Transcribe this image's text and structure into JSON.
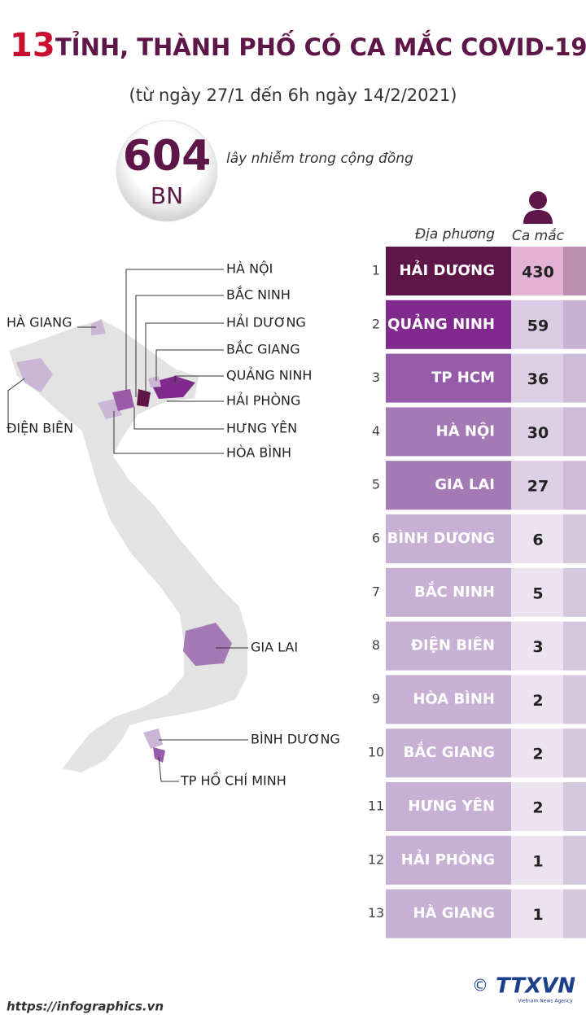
{
  "header": {
    "title_number": "13",
    "title_text": "TỈNH, THÀNH PHỐ CÓ CA MẮC COVID-19",
    "subtitle": "(từ ngày 27/1 đến 6h ngày 14/2/2021)"
  },
  "summary": {
    "number": "604",
    "unit": "BN",
    "caption": "lây nhiễm trong cộng đồng"
  },
  "table": {
    "headers": [
      "Địa phương",
      "Ca mắc"
    ],
    "rows": [
      [
        "1",
        "HẢI DƯƠNG",
        "430"
      ],
      [
        "2",
        "QUẢNG NINH",
        "59"
      ],
      [
        "3",
        "TP HCM",
        "36"
      ],
      [
        "4",
        "HÀ NỘI",
        "30"
      ],
      [
        "5",
        "GIA LAI",
        "27"
      ],
      [
        "6",
        "BÌNH DƯƠNG",
        "6"
      ],
      [
        "7",
        "BẮC NINH",
        "5"
      ],
      [
        "8",
        "ĐIỆN BIÊN",
        "3"
      ],
      [
        "9",
        "HÒA BÌNH",
        "2"
      ],
      [
        "10",
        "BẮC GIANG",
        "2"
      ],
      [
        "11",
        "HƯNG YÊN",
        "2"
      ],
      [
        "12",
        "HẢI PHÒNG",
        "1"
      ],
      [
        "13",
        "HÀ GIANG",
        "1"
      ]
    ]
  },
  "map": {
    "labels": [
      "HÀ NỘI",
      "BẮC NINH",
      "HẢI DƯƠNG",
      "BẮC GIANG",
      "QUẢNG NINH",
      "HẢI PHÒNG",
      "HƯNG YÊN",
      "HÒA BÌNH",
      "HÀ GIANG",
      "ĐIỆN BIÊN",
      "GIA LAI",
      "BÌNH DƯƠNG",
      "TP HỒ CHÍ MINH"
    ]
  },
  "footer": {
    "url": "https://infographics.vn",
    "copyright": "©",
    "logo": "TTXVN",
    "agency": "Vietnam News Agency"
  }
}
